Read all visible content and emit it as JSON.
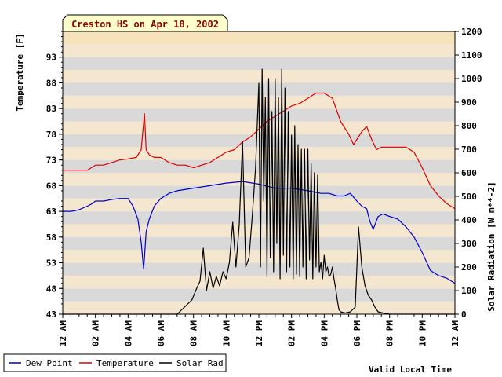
{
  "chart_data": {
    "type": "line",
    "title": "Creston HS on Apr 18, 2002",
    "xlabel": "Valid Local Time",
    "ylabel_left": "Temperature [F]",
    "ylabel_right": "Solar Radiation [W m**-2]",
    "x_ticks": [
      "12 AM",
      "02 AM",
      "04 AM",
      "06 AM",
      "08 AM",
      "10 AM",
      "12 PM",
      "02 PM",
      "04 PM",
      "06 PM",
      "08 PM",
      "10 PM",
      "12 AM"
    ],
    "xlim_hours": [
      0,
      24
    ],
    "y_left_ticks": [
      43,
      48,
      53,
      58,
      63,
      68,
      73,
      78,
      83,
      88,
      93
    ],
    "y_left_lim": [
      43,
      98
    ],
    "y_right_ticks": [
      0,
      100,
      200,
      300,
      400,
      500,
      600,
      700,
      800,
      900,
      1000,
      1100,
      1200
    ],
    "y_right_lim": [
      0,
      1200
    ],
    "series": [
      {
        "name": "Dew Point",
        "color": "#0000cc",
        "axis": "left",
        "x": [
          0,
          0.5,
          1,
          1.5,
          1.8,
          2,
          2.5,
          3,
          3.5,
          4,
          4.3,
          4.6,
          4.8,
          4.95,
          5.0,
          5.1,
          5.3,
          5.6,
          6,
          6.5,
          7,
          8,
          9,
          10,
          11,
          12,
          13,
          14,
          15,
          15.8,
          16.3,
          16.8,
          17.2,
          17.6,
          18,
          18.3,
          18.6,
          18.8,
          19.0,
          19.3,
          19.6,
          20,
          20.5,
          21,
          21.5,
          22,
          22.5,
          23,
          23.5,
          24
        ],
        "y": [
          63,
          63,
          63.3,
          64,
          64.5,
          65,
          65,
          65.3,
          65.5,
          65.5,
          64,
          61.5,
          57,
          51.8,
          54,
          59,
          61.5,
          64,
          65.5,
          66.5,
          67,
          67.5,
          68,
          68.5,
          68.8,
          68.3,
          67.5,
          67.5,
          67,
          66.5,
          66.5,
          66,
          66,
          66.5,
          65,
          64,
          63.5,
          61,
          59.5,
          62,
          62.5,
          62,
          61.5,
          60,
          58,
          55,
          51.5,
          50.5,
          50,
          49
        ]
      },
      {
        "name": "Temperature",
        "color": "#dd0000",
        "axis": "left",
        "x": [
          0,
          1,
          1.5,
          2,
          2.5,
          3,
          3.5,
          4,
          4.5,
          4.8,
          5.0,
          5.1,
          5.3,
          5.6,
          6,
          6.5,
          7,
          7.5,
          8,
          8.5,
          9,
          9.5,
          10,
          10.5,
          11,
          11.5,
          12,
          12.5,
          13,
          13.5,
          14,
          14.5,
          15,
          15.5,
          16,
          16.5,
          17,
          17.5,
          17.8,
          18,
          18.3,
          18.6,
          18.9,
          19.2,
          19.5,
          20,
          20.5,
          21,
          21.5,
          22,
          22.5,
          23,
          23.5,
          24
        ],
        "y": [
          71,
          71,
          71,
          72,
          72,
          72.5,
          73,
          73.2,
          73.5,
          75,
          82,
          75,
          74,
          73.5,
          73.5,
          72.5,
          72,
          72,
          71.5,
          72,
          72.5,
          73.5,
          74.5,
          75,
          76.5,
          77.5,
          79,
          80.5,
          81.5,
          82.5,
          83.5,
          84,
          85,
          86,
          86,
          85,
          80.5,
          78,
          76,
          77,
          78.5,
          79.5,
          77,
          75,
          75.5,
          75.5,
          75.5,
          75.5,
          74.5,
          71.5,
          68,
          66,
          64.5,
          63.5
        ]
      },
      {
        "name": "Solar Rad",
        "color": "#000000",
        "axis": "right",
        "x": [
          0,
          7.0,
          7.3,
          7.6,
          7.9,
          8.2,
          8.4,
          8.6,
          8.8,
          9.0,
          9.2,
          9.4,
          9.6,
          9.8,
          10.0,
          10.2,
          10.4,
          10.6,
          10.8,
          11.0,
          11.2,
          11.4,
          11.6,
          11.8,
          12.0,
          12.1,
          12.2,
          12.3,
          12.4,
          12.5,
          12.6,
          12.7,
          12.8,
          12.9,
          13.0,
          13.1,
          13.2,
          13.3,
          13.4,
          13.5,
          13.6,
          13.7,
          13.8,
          13.9,
          14.0,
          14.1,
          14.2,
          14.3,
          14.4,
          14.5,
          14.6,
          14.7,
          14.8,
          14.9,
          15.0,
          15.1,
          15.2,
          15.3,
          15.4,
          15.5,
          15.6,
          15.7,
          15.8,
          15.9,
          16.0,
          16.1,
          16.2,
          16.3,
          16.4,
          16.5,
          16.6,
          16.7,
          16.8,
          16.9,
          17.0,
          17.3,
          17.6,
          17.9,
          18.1,
          18.3,
          18.5,
          18.7,
          18.9,
          19.1,
          19.3,
          19.6,
          20.0,
          20.5,
          24
        ],
        "y": [
          0,
          0,
          20,
          40,
          60,
          110,
          140,
          280,
          100,
          180,
          110,
          160,
          120,
          180,
          150,
          220,
          390,
          200,
          380,
          730,
          200,
          240,
          420,
          620,
          980,
          200,
          1040,
          480,
          920,
          160,
          1000,
          240,
          860,
          180,
          1000,
          300,
          920,
          150,
          1040,
          250,
          960,
          180,
          860,
          200,
          760,
          150,
          800,
          170,
          720,
          160,
          700,
          200,
          700,
          150,
          700,
          230,
          640,
          150,
          600,
          200,
          590,
          180,
          220,
          150,
          250,
          180,
          200,
          160,
          170,
          200,
          150,
          110,
          60,
          20,
          10,
          5,
          10,
          30,
          370,
          200,
          120,
          80,
          60,
          30,
          10,
          5,
          0,
          0,
          0
        ]
      }
    ],
    "legend_position": "bottom-left",
    "bands": "alternating beige and light gray horizontal bands"
  }
}
